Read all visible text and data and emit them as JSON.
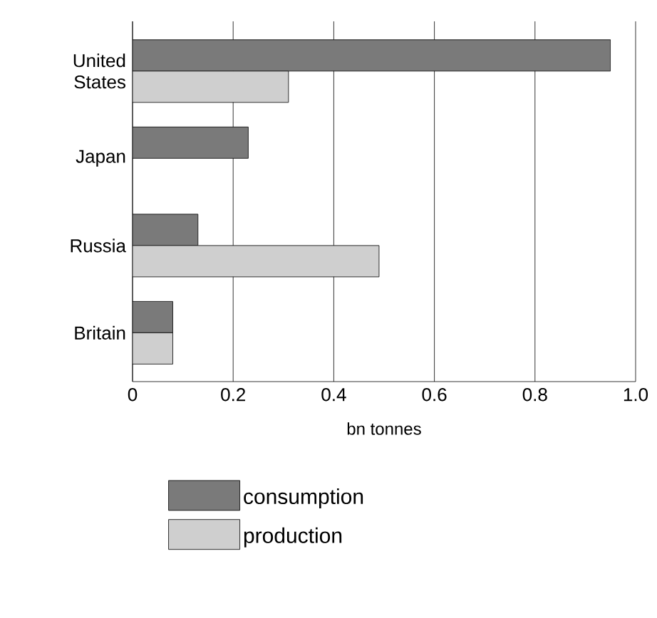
{
  "chart_data": {
    "type": "bar",
    "orientation": "horizontal",
    "xlabel": "bn tonnes",
    "categories": [
      "United States",
      "Japan",
      "Russia",
      "Britain"
    ],
    "series": [
      {
        "name": "consumption",
        "color": "#7a7a7a",
        "values": [
          0.95,
          0.23,
          0.13,
          0.08
        ]
      },
      {
        "name": "production",
        "color": "#cfcfcf",
        "values": [
          0.31,
          null,
          0.49,
          0.08
        ]
      }
    ],
    "xlim": [
      0,
      1
    ],
    "xticks": [
      0,
      0.2,
      0.4,
      0.6,
      0.8,
      {
        "value": 1,
        "label": "1.0"
      }
    ],
    "grid": "x",
    "legend": "bottom"
  }
}
